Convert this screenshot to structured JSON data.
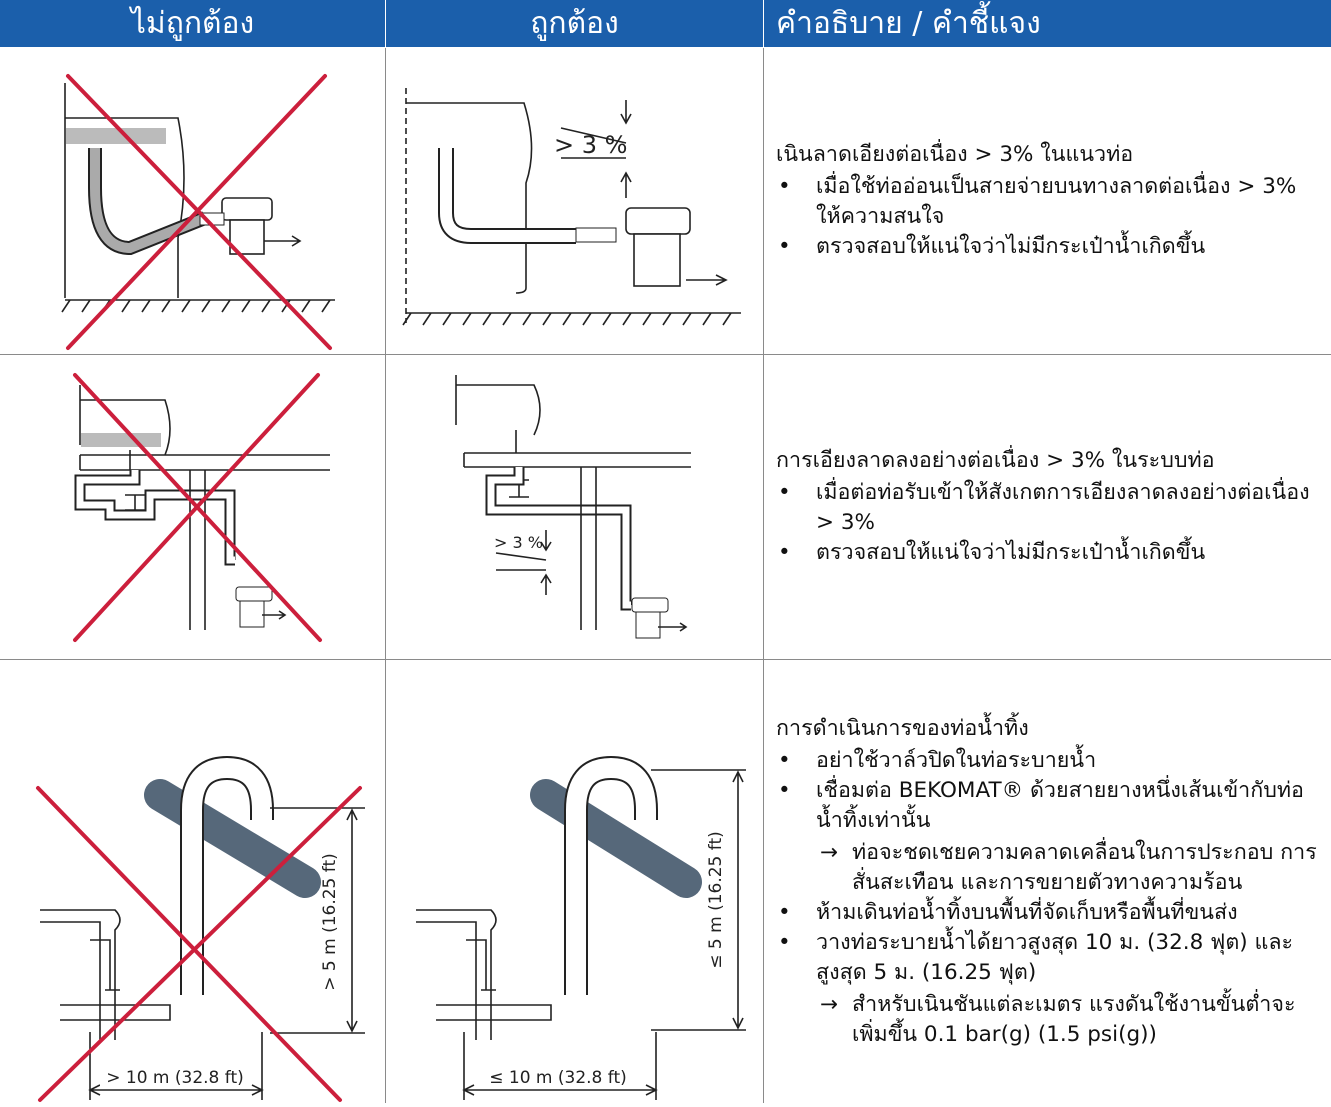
{
  "table": {
    "header": [
      "ไม่ถูกต้อง",
      "ถูกต้อง",
      "คำอธิบาย / คำชี้แจง"
    ],
    "rows": [
      {
        "correct_labels": [
          "> 3 %"
        ],
        "description": {
          "title": "เนินลาดเอียงต่อเนื่อง > 3% ในแนวท่อ",
          "items": [
            {
              "text": "เมื่อใช้ท่ออ่อนเป็นสายจ่ายบนทางลาดต่อเนื่อง > 3% ให้ความสนใจ"
            },
            {
              "text": "ตรวจสอบให้แน่ใจว่าไม่มีกระเป๋าน้ำเกิดขึ้น"
            }
          ]
        }
      },
      {
        "correct_labels": [
          "> 3 %"
        ],
        "description": {
          "title": "การเอียงลาดลงอย่างต่อเนื่อง > 3% ในระบบท่อ",
          "items": [
            {
              "text": "เมื่อต่อท่อรับเข้าให้สังเกตการเอียงลาดลงอย่างต่อเนื่อง > 3%"
            },
            {
              "text": "ตรวจสอบให้แน่ใจว่าไม่มีกระเป๋าน้ำเกิดขึ้น"
            }
          ]
        }
      },
      {
        "incorrect_labels": [
          "> 10 m (32.8  ft)",
          "> 5 m (16.25  ft)"
        ],
        "correct_labels": [
          "≤ 10 m (32.8  ft)",
          "≤ 5 m (16.25  ft)"
        ],
        "description": {
          "title": "การดำเนินการของท่อน้ำทิ้ง",
          "items": [
            {
              "text": "อย่าใช้วาล์วปิดในท่อระบายน้ำ"
            },
            {
              "text": "เชื่อมต่อ BEKOMAT® ด้วยสายยางหนึ่งเส้นเข้ากับท่อน้ำทิ้งเท่านั้น",
              "subitems": [
                "ท่อจะชดเชยความคลาดเคลื่อนในการประกอบ การสั่นสะเทือน และการขยายตัวทางความร้อน"
              ]
            },
            {
              "text": "ห้ามเดินท่อน้ำทิ้งบนพื้นที่จัดเก็บหรือพื้นที่ขนส่ง"
            },
            {
              "text": "วางท่อระบายน้ำได้ยาวสูงสุด 10 ม. (32.8 ฟุต) และสูงสุด 5 ม. (16.25 ฟุต)",
              "subitems": [
                "สำหรับเนินชันแต่ละเมตร แรงดันใช้งานขั้นต่ำจะเพิ่มขึ้น 0.1 bar(g) (1.5 psi(g))"
              ]
            }
          ]
        }
      }
    ]
  }
}
